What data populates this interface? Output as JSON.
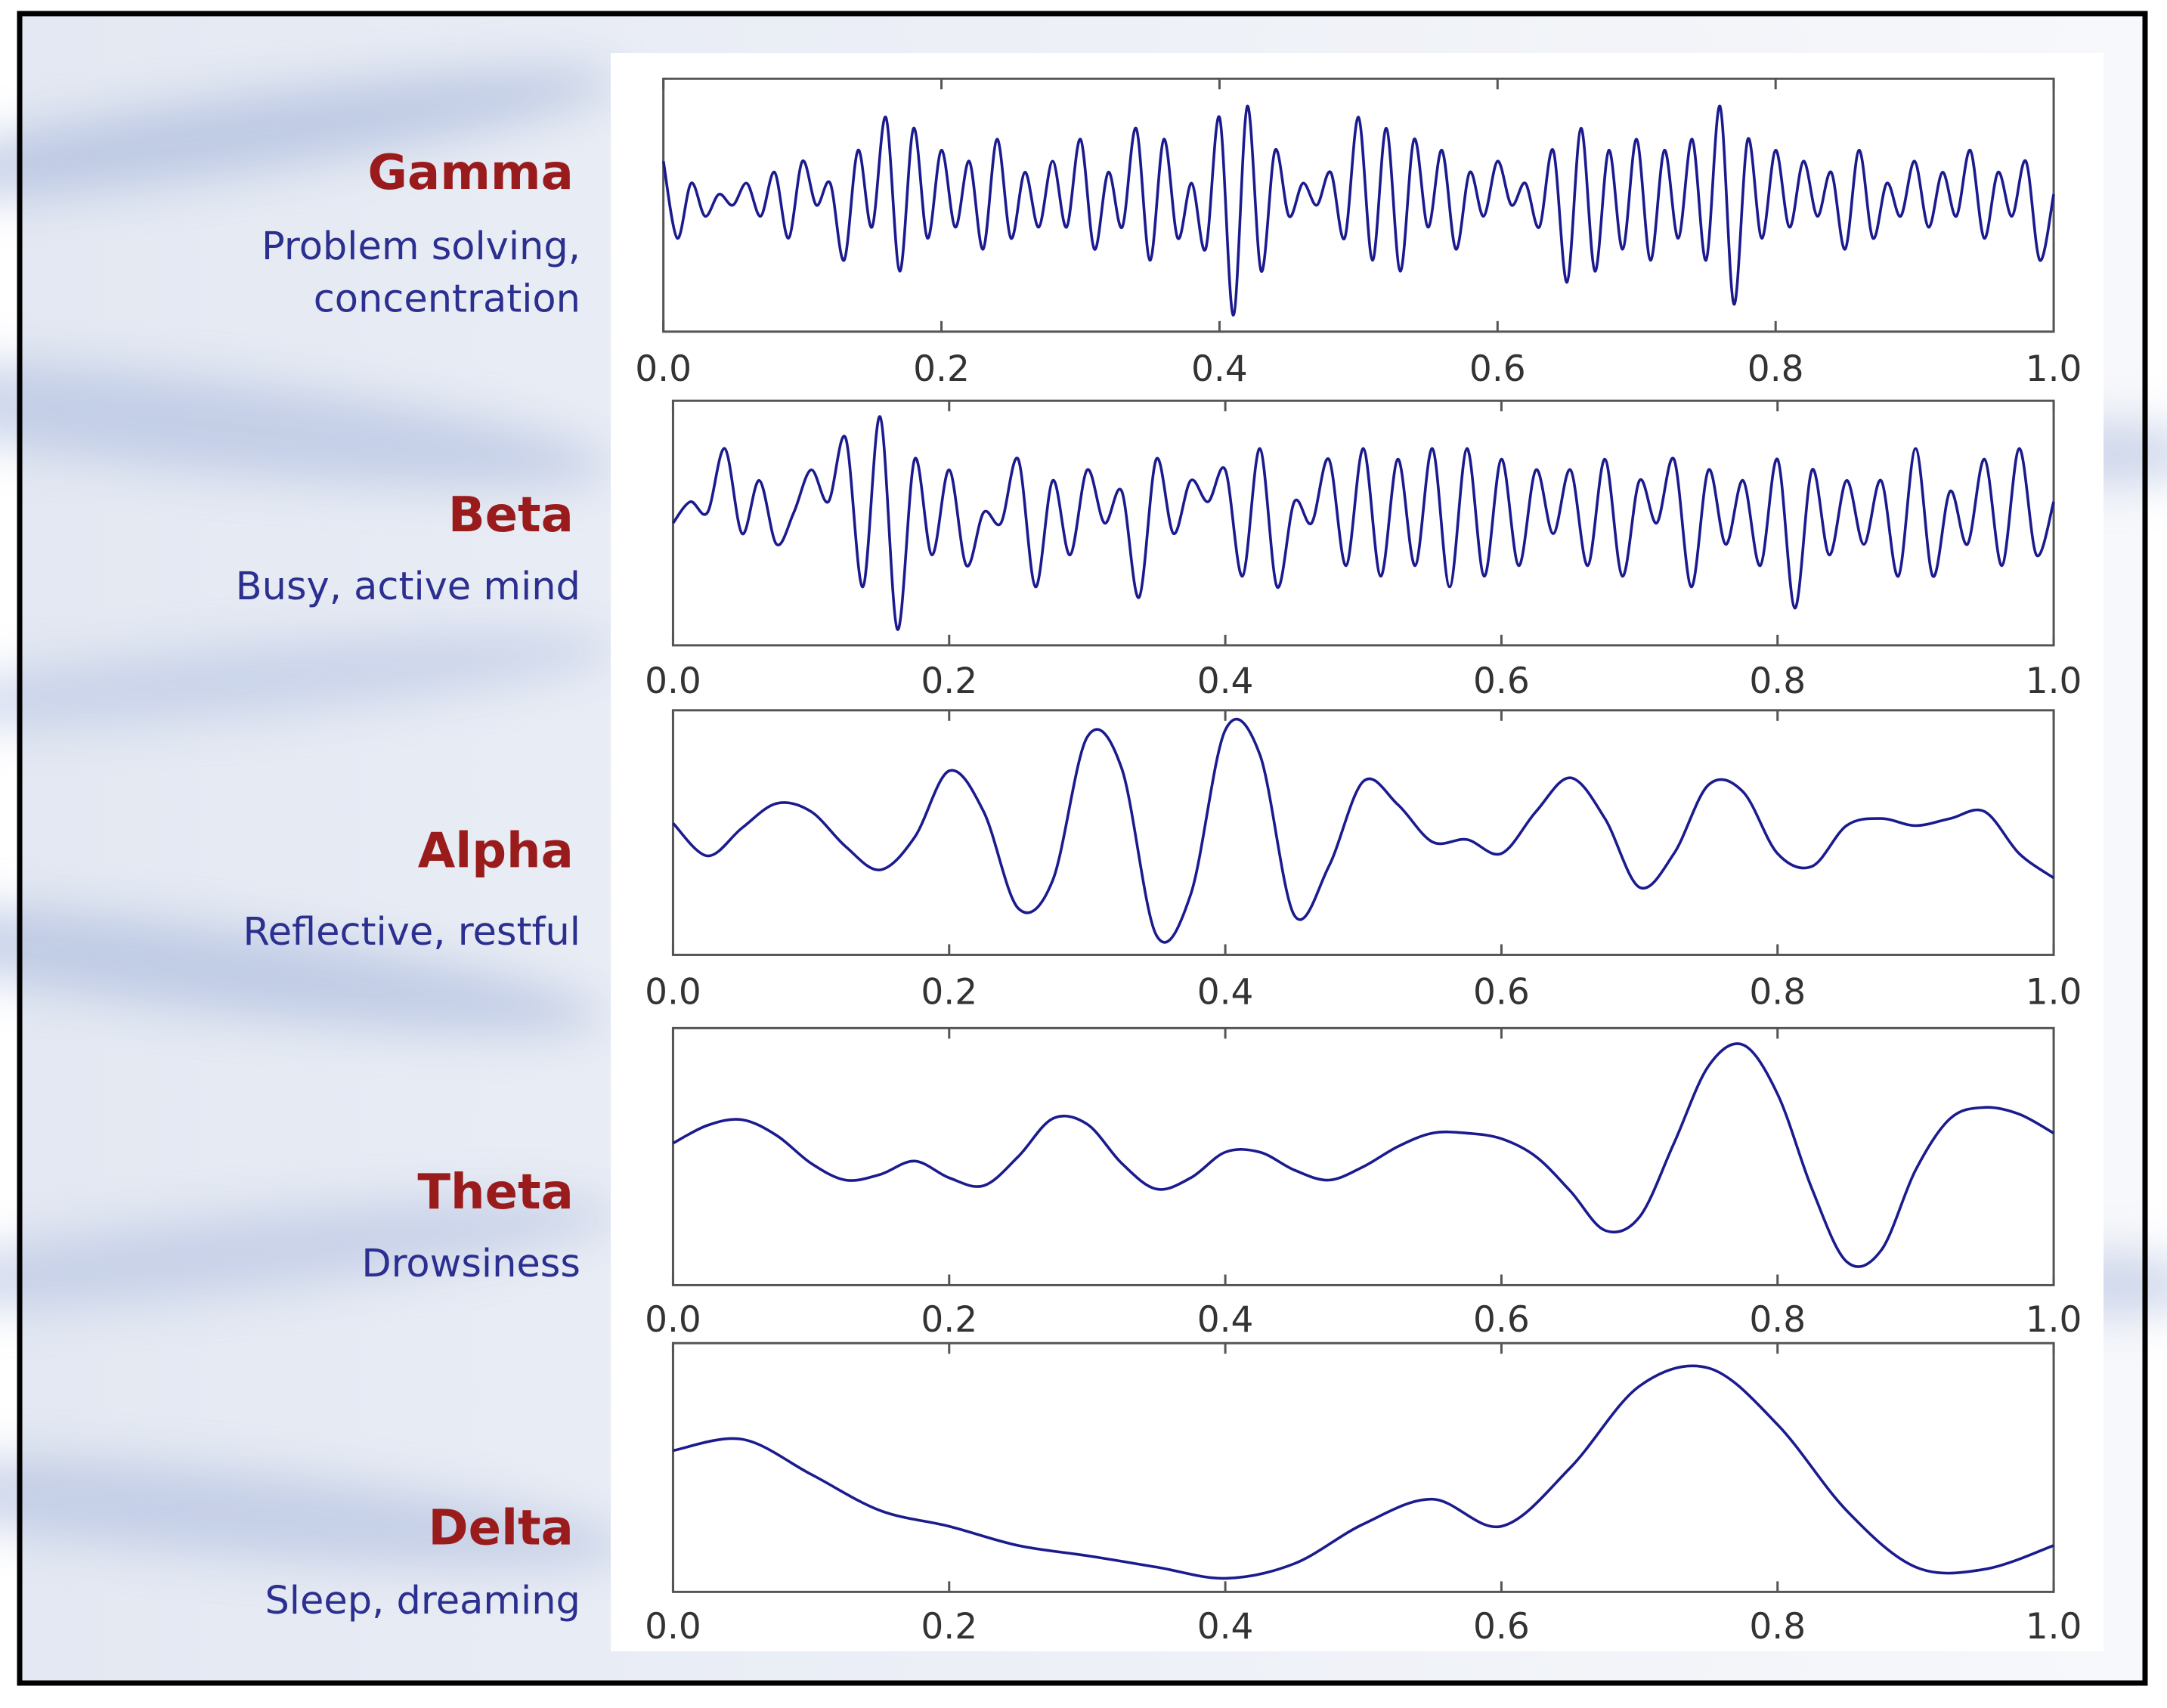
{
  "chart_data": [
    {
      "type": "line",
      "title": "Gamma",
      "subtitle": [
        "Problem solving,",
        "concentration"
      ],
      "x": [
        0,
        0.01,
        0.02,
        0.03,
        0.04,
        0.05,
        0.06,
        0.07,
        0.08,
        0.09,
        0.1,
        0.11,
        0.12,
        0.13,
        0.14,
        0.15,
        0.16,
        0.17,
        0.18,
        0.19,
        0.2,
        0.21,
        0.22,
        0.23,
        0.24,
        0.25,
        0.26,
        0.27,
        0.28,
        0.29,
        0.3,
        0.31,
        0.32,
        0.33,
        0.34,
        0.35,
        0.36,
        0.37,
        0.38,
        0.39,
        0.4,
        0.41,
        0.42,
        0.43,
        0.44,
        0.45,
        0.46,
        0.47,
        0.48,
        0.49,
        0.5,
        0.51,
        0.52,
        0.53,
        0.54,
        0.55,
        0.56,
        0.57,
        0.58,
        0.59,
        0.6,
        0.61,
        0.62,
        0.63,
        0.64,
        0.65,
        0.66,
        0.67,
        0.68,
        0.69,
        0.7,
        0.71,
        0.72,
        0.73,
        0.74,
        0.75,
        0.76,
        0.77,
        0.78,
        0.79,
        0.8,
        0.81,
        0.82,
        0.83,
        0.84,
        0.85,
        0.86,
        0.87,
        0.88,
        0.89,
        0.9,
        0.91,
        0.92,
        0.93,
        0.94,
        0.95,
        0.96,
        0.97,
        0.98,
        0.99,
        1.0
      ],
      "series": [
        {
          "name": "Gamma",
          "color": "#1b1b8f",
          "values": [
            0.4,
            -0.3,
            0.2,
            -0.1,
            0.1,
            0.0,
            0.2,
            -0.1,
            0.3,
            -0.3,
            0.4,
            0.0,
            0.2,
            -0.5,
            0.5,
            -0.2,
            0.8,
            -0.6,
            0.7,
            -0.3,
            0.5,
            -0.2,
            0.4,
            -0.4,
            0.6,
            -0.3,
            0.3,
            -0.2,
            0.4,
            -0.2,
            0.6,
            -0.4,
            0.3,
            -0.2,
            0.7,
            -0.5,
            0.6,
            -0.3,
            0.2,
            -0.4,
            0.8,
            -1.0,
            0.9,
            -0.6,
            0.5,
            -0.1,
            0.2,
            0.0,
            0.3,
            -0.3,
            0.8,
            -0.5,
            0.7,
            -0.6,
            0.6,
            -0.2,
            0.5,
            -0.4,
            0.3,
            -0.1,
            0.4,
            0.0,
            0.2,
            -0.2,
            0.5,
            -0.7,
            0.7,
            -0.6,
            0.5,
            -0.4,
            0.6,
            -0.5,
            0.5,
            -0.3,
            0.6,
            -0.5,
            0.9,
            -0.9,
            0.6,
            -0.3,
            0.5,
            -0.2,
            0.4,
            -0.1,
            0.3,
            -0.4,
            0.5,
            -0.3,
            0.2,
            -0.1,
            0.4,
            -0.2,
            0.3,
            -0.1,
            0.5,
            -0.3,
            0.3,
            -0.1,
            0.4,
            -0.5,
            0.1
          ]
        }
      ],
      "xlim": [
        0,
        1
      ],
      "ylim": [
        -1.15,
        1.15
      ],
      "xticks": [
        {
          "value": 0,
          "label": "0.0"
        },
        0.2,
        0.4,
        0.6,
        0.8,
        {
          "value": 1,
          "label": "1.0"
        }
      ]
    },
    {
      "type": "line",
      "title": "Beta",
      "subtitle": [
        "Busy, active mind"
      ],
      "x": [
        0,
        0.0125,
        0.025,
        0.0375,
        0.05,
        0.0625,
        0.075,
        0.0875,
        0.1,
        0.1125,
        0.125,
        0.1375,
        0.15,
        0.1625,
        0.175,
        0.1875,
        0.2,
        0.2125,
        0.225,
        0.2375,
        0.25,
        0.2625,
        0.275,
        0.2875,
        0.3,
        0.3125,
        0.325,
        0.3375,
        0.35,
        0.3625,
        0.375,
        0.3875,
        0.4,
        0.4125,
        0.425,
        0.4375,
        0.45,
        0.4625,
        0.475,
        0.4875,
        0.5,
        0.5125,
        0.525,
        0.5375,
        0.55,
        0.5625,
        0.575,
        0.5875,
        0.6,
        0.6125,
        0.625,
        0.6375,
        0.65,
        0.6625,
        0.675,
        0.6875,
        0.7,
        0.7125,
        0.725,
        0.7375,
        0.75,
        0.7625,
        0.775,
        0.7875,
        0.8,
        0.8125,
        0.825,
        0.8375,
        0.85,
        0.8625,
        0.875,
        0.8875,
        0.9,
        0.9125,
        0.925,
        0.9375,
        0.95,
        0.9625,
        0.975,
        0.9875,
        1.0
      ],
      "series": [
        {
          "name": "Beta",
          "color": "#1b1b8f",
          "values": [
            0.0,
            0.2,
            0.1,
            0.7,
            -0.1,
            0.4,
            -0.2,
            0.1,
            0.5,
            0.2,
            0.8,
            -0.6,
            1.0,
            -1.0,
            0.6,
            -0.3,
            0.5,
            -0.4,
            0.1,
            0.0,
            0.6,
            -0.6,
            0.4,
            -0.3,
            0.5,
            0.0,
            0.3,
            -0.7,
            0.6,
            -0.1,
            0.4,
            0.2,
            0.5,
            -0.5,
            0.7,
            -0.6,
            0.2,
            0.0,
            0.6,
            -0.4,
            0.7,
            -0.5,
            0.6,
            -0.4,
            0.7,
            -0.6,
            0.7,
            -0.5,
            0.6,
            -0.4,
            0.5,
            -0.1,
            0.5,
            -0.4,
            0.6,
            -0.5,
            0.4,
            0.0,
            0.6,
            -0.6,
            0.5,
            -0.2,
            0.4,
            -0.4,
            0.6,
            -0.8,
            0.5,
            -0.3,
            0.4,
            -0.2,
            0.4,
            -0.5,
            0.7,
            -0.5,
            0.3,
            -0.2,
            0.6,
            -0.4,
            0.7,
            -0.3,
            0.2
          ]
        }
      ],
      "xlim": [
        0,
        1
      ],
      "ylim": [
        -1.15,
        1.15
      ],
      "xticks": [
        {
          "value": 0,
          "label": "0.0"
        },
        0.2,
        0.4,
        0.6,
        0.8,
        {
          "value": 1,
          "label": "1.0"
        }
      ]
    },
    {
      "type": "line",
      "title": "Alpha",
      "subtitle": [
        "Reflective, restful"
      ],
      "x": [
        0,
        0.025,
        0.05,
        0.075,
        0.1,
        0.125,
        0.15,
        0.175,
        0.2,
        0.225,
        0.25,
        0.275,
        0.3,
        0.325,
        0.35,
        0.375,
        0.4,
        0.425,
        0.45,
        0.475,
        0.5,
        0.525,
        0.55,
        0.575,
        0.6,
        0.625,
        0.65,
        0.675,
        0.7,
        0.725,
        0.75,
        0.775,
        0.8,
        0.825,
        0.85,
        0.875,
        0.9,
        0.925,
        0.95,
        0.975,
        1.0
      ],
      "series": [
        {
          "name": "Alpha",
          "color": "#1b1b8f",
          "values": [
            0.08,
            -0.2,
            0.04,
            0.25,
            0.18,
            -0.12,
            -0.32,
            -0.04,
            0.53,
            0.18,
            -0.65,
            -0.41,
            0.82,
            0.55,
            -0.88,
            -0.53,
            0.88,
            0.67,
            -0.71,
            -0.29,
            0.44,
            0.24,
            -0.08,
            -0.06,
            -0.18,
            0.18,
            0.47,
            0.12,
            -0.47,
            -0.18,
            0.41,
            0.35,
            -0.18,
            -0.29,
            0.06,
            0.12,
            0.06,
            0.12,
            0.18,
            -0.18,
            -0.39
          ]
        }
      ],
      "xlim": [
        0,
        1
      ],
      "ylim": [
        -1.05,
        1.05
      ],
      "xticks": [
        {
          "value": 0,
          "label": "0.0"
        },
        0.2,
        0.4,
        0.6,
        0.8,
        {
          "value": 1,
          "label": "1.0"
        }
      ]
    },
    {
      "type": "line",
      "title": "Theta",
      "subtitle": [
        "Drowsiness"
      ],
      "x": [
        0,
        0.025,
        0.05,
        0.075,
        0.1,
        0.125,
        0.15,
        0.175,
        0.2,
        0.225,
        0.25,
        0.275,
        0.3,
        0.325,
        0.35,
        0.375,
        0.4,
        0.425,
        0.45,
        0.475,
        0.5,
        0.525,
        0.55,
        0.575,
        0.6,
        0.625,
        0.65,
        0.675,
        0.7,
        0.725,
        0.75,
        0.775,
        0.8,
        0.825,
        0.85,
        0.875,
        0.9,
        0.925,
        0.95,
        0.975,
        1.0
      ],
      "series": [
        {
          "name": "Theta",
          "color": "#1b1b8f",
          "values": [
            0.12,
            0.28,
            0.33,
            0.19,
            -0.06,
            -0.21,
            -0.16,
            -0.04,
            -0.19,
            -0.26,
            0.0,
            0.34,
            0.29,
            -0.06,
            -0.29,
            -0.19,
            0.04,
            0.04,
            -0.12,
            -0.21,
            -0.09,
            0.09,
            0.21,
            0.21,
            0.16,
            0.0,
            -0.31,
            -0.66,
            -0.54,
            0.12,
            0.81,
            1.0,
            0.56,
            -0.29,
            -0.94,
            -0.84,
            -0.12,
            0.34,
            0.44,
            0.38,
            0.21
          ]
        }
      ],
      "xlim": [
        0,
        1
      ],
      "ylim": [
        -1.15,
        1.15
      ],
      "xticks": [
        {
          "value": 0,
          "label": "0.0"
        },
        0.2,
        0.4,
        0.6,
        0.8,
        {
          "value": 1,
          "label": "1.0"
        }
      ]
    },
    {
      "type": "line",
      "title": "Delta",
      "subtitle": [
        "Sleep, dreaming"
      ],
      "x": [
        0,
        0.05,
        0.1,
        0.15,
        0.2,
        0.25,
        0.3,
        0.35,
        0.4,
        0.45,
        0.5,
        0.55,
        0.6,
        0.65,
        0.7,
        0.75,
        0.8,
        0.85,
        0.9,
        0.95,
        1.0
      ],
      "series": [
        {
          "name": "Delta",
          "color": "#1b1b8f",
          "values": [
            0.15,
            0.25,
            -0.06,
            -0.38,
            -0.52,
            -0.69,
            -0.78,
            -0.88,
            -0.98,
            -0.85,
            -0.5,
            -0.28,
            -0.52,
            0.0,
            0.72,
            0.88,
            0.38,
            -0.38,
            -0.88,
            -0.9,
            -0.69
          ]
        }
      ],
      "xlim": [
        0,
        1
      ],
      "ylim": [
        -1.1,
        1.1
      ],
      "xticks": [
        {
          "value": 0,
          "label": "0.0"
        },
        0.2,
        0.4,
        0.6,
        0.8,
        {
          "value": 1,
          "label": "1.0"
        }
      ]
    }
  ]
}
